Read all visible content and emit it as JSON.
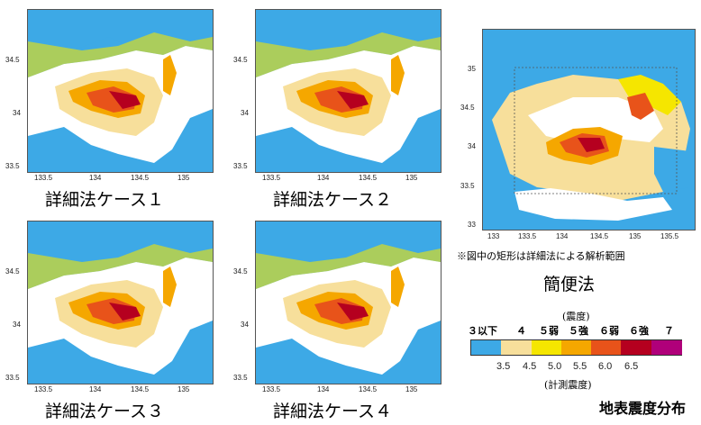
{
  "panels": [
    {
      "id": "case1",
      "caption": "詳細法ケース１",
      "lat_ticks": [
        "34.5",
        "34",
        "33.5"
      ],
      "lon_ticks": [
        "133.5",
        "134",
        "134.5",
        "135"
      ]
    },
    {
      "id": "case2",
      "caption": "詳細法ケース２",
      "lat_ticks": [
        "34.5",
        "34",
        "33.5"
      ],
      "lon_ticks": [
        "133.5",
        "134",
        "134.5",
        "135"
      ]
    },
    {
      "id": "case3",
      "caption": "詳細法ケース３",
      "lat_ticks": [
        "34.5",
        "34",
        "33.5"
      ],
      "lon_ticks": [
        "133.5",
        "134",
        "134.5",
        "135"
      ]
    },
    {
      "id": "case4",
      "caption": "詳細法ケース４",
      "lat_ticks": [
        "34.5",
        "34",
        "33.5"
      ],
      "lon_ticks": [
        "133.5",
        "134",
        "134.5",
        "135"
      ]
    }
  ],
  "simple": {
    "caption": "簡便法",
    "note": "※図中の矩形は詳細法による解析範囲",
    "lat_ticks": [
      "35",
      "34.5",
      "34",
      "33.5",
      "33"
    ],
    "lon_ticks": [
      "133",
      "133.5",
      "134",
      "134.5",
      "135",
      "135.5"
    ]
  },
  "legend": {
    "title_top": "(震度)",
    "title_bottom": "(計測震度)",
    "intensity_labels": [
      "３以下",
      "４",
      "５弱",
      "５強",
      "６弱",
      "６強",
      "７"
    ],
    "instrumental_labels": [
      "3.5",
      "4.5",
      "5.0",
      "5.5",
      "6.0",
      "6.5"
    ],
    "colors": [
      "#3da9e6",
      "#f7df9b",
      "#f5e600",
      "#f5a700",
      "#e8531a",
      "#b5001f",
      "#b0007a"
    ]
  },
  "page_title": "地表震度分布"
}
